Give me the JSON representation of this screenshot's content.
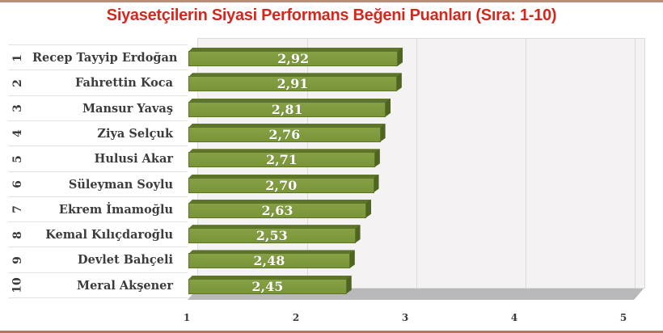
{
  "title": "Siyasetçilerin Siyasi Performans Beğeni Puanları (Sıra: 1-10)",
  "colors": {
    "title": "#d4281c",
    "bar": "#7d973b",
    "bar_dark": "#5e7428",
    "floor": "#b9b9bb",
    "wall": "#f4f2f2"
  },
  "x_ticks": [
    "1",
    "2",
    "3",
    "4",
    "5"
  ],
  "rows": [
    {
      "rank": "1",
      "name": "Recep Tayyip Erdoğan",
      "value": 2.92,
      "label": "2,92"
    },
    {
      "rank": "2",
      "name": "Fahrettin Koca",
      "value": 2.91,
      "label": "2,91"
    },
    {
      "rank": "3",
      "name": "Mansur Yavaş",
      "value": 2.81,
      "label": "2,81"
    },
    {
      "rank": "4",
      "name": "Ziya Selçuk",
      "value": 2.76,
      "label": "2,76"
    },
    {
      "rank": "5",
      "name": "Hulusi Akar",
      "value": 2.71,
      "label": "2,71"
    },
    {
      "rank": "6",
      "name": "Süleyman Soylu",
      "value": 2.7,
      "label": "2,70"
    },
    {
      "rank": "7",
      "name": "Ekrem İmamoğlu",
      "value": 2.63,
      "label": "2,63"
    },
    {
      "rank": "8",
      "name": "Kemal Kılıçdaroğlu",
      "value": 2.53,
      "label": "2,53"
    },
    {
      "rank": "9",
      "name": "Devlet Bahçeli",
      "value": 2.48,
      "label": "2,48"
    },
    {
      "rank": "10",
      "name": "Meral Akşener",
      "value": 2.45,
      "label": "2,45"
    }
  ],
  "chart_data": {
    "type": "bar",
    "orientation": "horizontal",
    "title": "Siyasetçilerin Siyasi Performans Beğeni Puanları (Sıra: 1-10)",
    "categories": [
      "Recep Tayyip Erdoğan",
      "Fahrettin Koca",
      "Mansur Yavaş",
      "Ziya Selçuk",
      "Hulusi Akar",
      "Süleyman Soylu",
      "Ekrem İmamoğlu",
      "Kemal Kılıçdaroğlu",
      "Devlet Bahçeli",
      "Meral Akşener"
    ],
    "ranks": [
      1,
      2,
      3,
      4,
      5,
      6,
      7,
      8,
      9,
      10
    ],
    "values": [
      2.92,
      2.91,
      2.81,
      2.76,
      2.71,
      2.7,
      2.63,
      2.53,
      2.48,
      2.45
    ],
    "data_labels": [
      "2,92",
      "2,91",
      "2,81",
      "2,76",
      "2,71",
      "2,70",
      "2,63",
      "2,53",
      "2,48",
      "2,45"
    ],
    "xlabel": "",
    "ylabel": "",
    "xlim": [
      1,
      5
    ],
    "x_ticks": [
      1,
      2,
      3,
      4,
      5
    ],
    "grid": true,
    "legend": null,
    "style": "3d-bar"
  }
}
